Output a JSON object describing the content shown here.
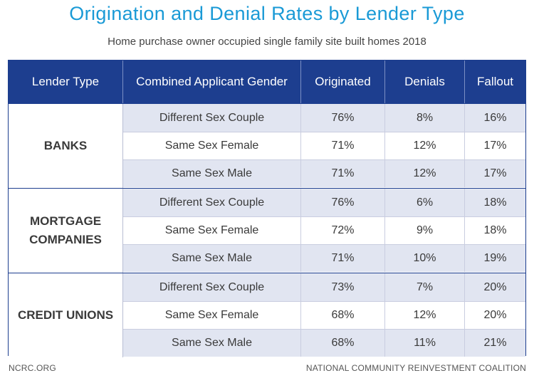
{
  "header": {
    "title": "Origination and Denial Rates by Lender Type",
    "subtitle": "Home purchase owner occupied single family site built homes 2018"
  },
  "colors": {
    "title": "#1a9ad6",
    "table_header": "#1d3e8f",
    "row_shade": "#e1e5f1"
  },
  "table": {
    "columns": [
      "Lender Type",
      "Combined Applicant Gender",
      "Originated",
      "Denials",
      "Fallout"
    ],
    "groups": [
      {
        "lender_line1": "BANKS",
        "lender_line2": "",
        "rows": [
          {
            "gender": "Different Sex Couple",
            "originated": "76%",
            "denials": "8%",
            "fallout": "16%"
          },
          {
            "gender": "Same Sex Female",
            "originated": "71%",
            "denials": "12%",
            "fallout": "17%"
          },
          {
            "gender": "Same Sex Male",
            "originated": "71%",
            "denials": "12%",
            "fallout": "17%"
          }
        ]
      },
      {
        "lender_line1": "MORTGAGE",
        "lender_line2": "COMPANIES",
        "rows": [
          {
            "gender": "Different Sex Couple",
            "originated": "76%",
            "denials": "6%",
            "fallout": "18%"
          },
          {
            "gender": "Same Sex Female",
            "originated": "72%",
            "denials": "9%",
            "fallout": "18%"
          },
          {
            "gender": "Same Sex Male",
            "originated": "71%",
            "denials": "10%",
            "fallout": "19%"
          }
        ]
      },
      {
        "lender_line1": "CREDIT UNIONS",
        "lender_line2": "",
        "rows": [
          {
            "gender": "Different Sex Couple",
            "originated": "73%",
            "denials": "7%",
            "fallout": "20%"
          },
          {
            "gender": "Same Sex Female",
            "originated": "68%",
            "denials": "12%",
            "fallout": "20%"
          },
          {
            "gender": "Same Sex Male",
            "originated": "68%",
            "denials": "11%",
            "fallout": "21%"
          }
        ]
      }
    ]
  },
  "footer": {
    "left": "NCRC.ORG",
    "right": "NATIONAL COMMUNITY REINVESTMENT COALITION"
  }
}
